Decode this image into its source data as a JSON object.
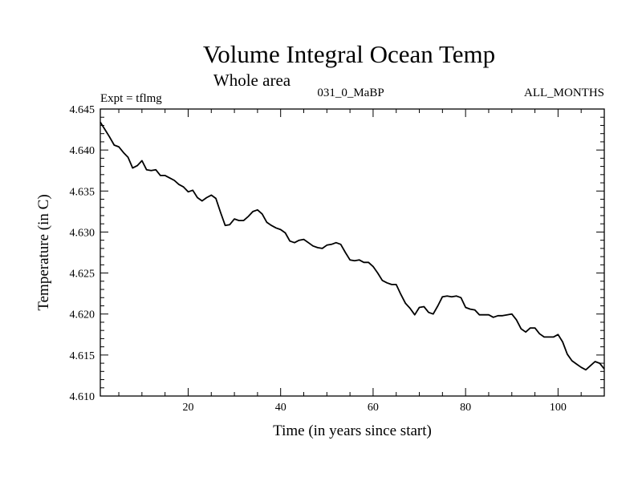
{
  "chart_data": {
    "type": "line",
    "title": "Volume Integral Ocean Temp",
    "subtitle": "Whole area",
    "left_label": "Expt = tflmg",
    "center_label": "031_0_MaBP",
    "right_label": "ALL_MONTHS",
    "xlabel": "Time (in years since start)",
    "ylabel": "Temperature (in C)",
    "xlim": [
      1,
      110
    ],
    "ylim": [
      4.61,
      4.645
    ],
    "x_ticks": [
      20,
      40,
      60,
      80,
      100
    ],
    "x_tick_labels": [
      "20",
      "40",
      "60",
      "80",
      "100"
    ],
    "y_ticks": [
      4.61,
      4.615,
      4.62,
      4.625,
      4.63,
      4.635,
      4.64,
      4.645
    ],
    "y_tick_labels": [
      "4.610",
      "4.615",
      "4.620",
      "4.625",
      "4.630",
      "4.635",
      "4.640",
      "4.645"
    ],
    "grid": false,
    "series": [
      {
        "name": "tflmg",
        "color": "#000000",
        "x": [
          1,
          2,
          3,
          4,
          5,
          6,
          7,
          8,
          9,
          10,
          11,
          12,
          13,
          14,
          15,
          16,
          17,
          18,
          19,
          20,
          21,
          22,
          23,
          24,
          25,
          26,
          27,
          28,
          29,
          30,
          31,
          32,
          33,
          34,
          35,
          36,
          37,
          38,
          39,
          40,
          41,
          42,
          43,
          44,
          45,
          46,
          47,
          48,
          49,
          50,
          51,
          52,
          53,
          54,
          55,
          56,
          57,
          58,
          59,
          60,
          61,
          62,
          63,
          64,
          65,
          66,
          67,
          68,
          69,
          70,
          71,
          72,
          73,
          74,
          75,
          76,
          77,
          78,
          79,
          80,
          81,
          82,
          83,
          84,
          85,
          86,
          87,
          88,
          89,
          90,
          91,
          92,
          93,
          94,
          95,
          96,
          97,
          98,
          99,
          100,
          101,
          102,
          103,
          104,
          105,
          106,
          107,
          108,
          109,
          110
        ],
        "values": [
          4.6434,
          4.6425,
          4.6416,
          4.6406,
          4.6404,
          4.6397,
          4.6391,
          4.6378,
          4.6381,
          4.6387,
          4.6376,
          4.6375,
          4.6376,
          4.6369,
          4.6369,
          4.6366,
          4.6363,
          4.6358,
          4.6355,
          4.6349,
          4.6351,
          4.6342,
          4.6338,
          4.6342,
          4.6345,
          4.6341,
          4.6324,
          4.6308,
          4.6309,
          4.6316,
          4.6314,
          4.6314,
          4.6319,
          4.6325,
          4.6327,
          4.6322,
          4.6312,
          4.6308,
          4.6305,
          4.6303,
          4.6299,
          4.6289,
          4.6287,
          4.629,
          4.6291,
          4.6287,
          4.6283,
          4.6281,
          4.628,
          4.6284,
          4.6285,
          4.6287,
          4.6285,
          4.6275,
          4.6266,
          4.6265,
          4.6266,
          4.6263,
          4.6263,
          4.6258,
          4.625,
          4.6241,
          4.6238,
          4.6236,
          4.6236,
          4.6224,
          4.6213,
          4.6207,
          4.6199,
          4.6208,
          4.6209,
          4.6202,
          4.62,
          4.621,
          4.6221,
          4.6222,
          4.6221,
          4.6222,
          4.622,
          4.6208,
          4.6206,
          4.6205,
          4.6199,
          4.6199,
          4.6199,
          4.6196,
          4.6198,
          4.6198,
          4.6199,
          4.62,
          4.6193,
          4.6182,
          4.6178,
          4.6183,
          4.6183,
          4.6176,
          4.6172,
          4.6172,
          4.6172,
          4.6175,
          4.6166,
          4.6151,
          4.6143,
          4.6139,
          4.6135,
          4.6132,
          4.6137,
          4.6142,
          4.614,
          4.6133
        ]
      }
    ]
  }
}
